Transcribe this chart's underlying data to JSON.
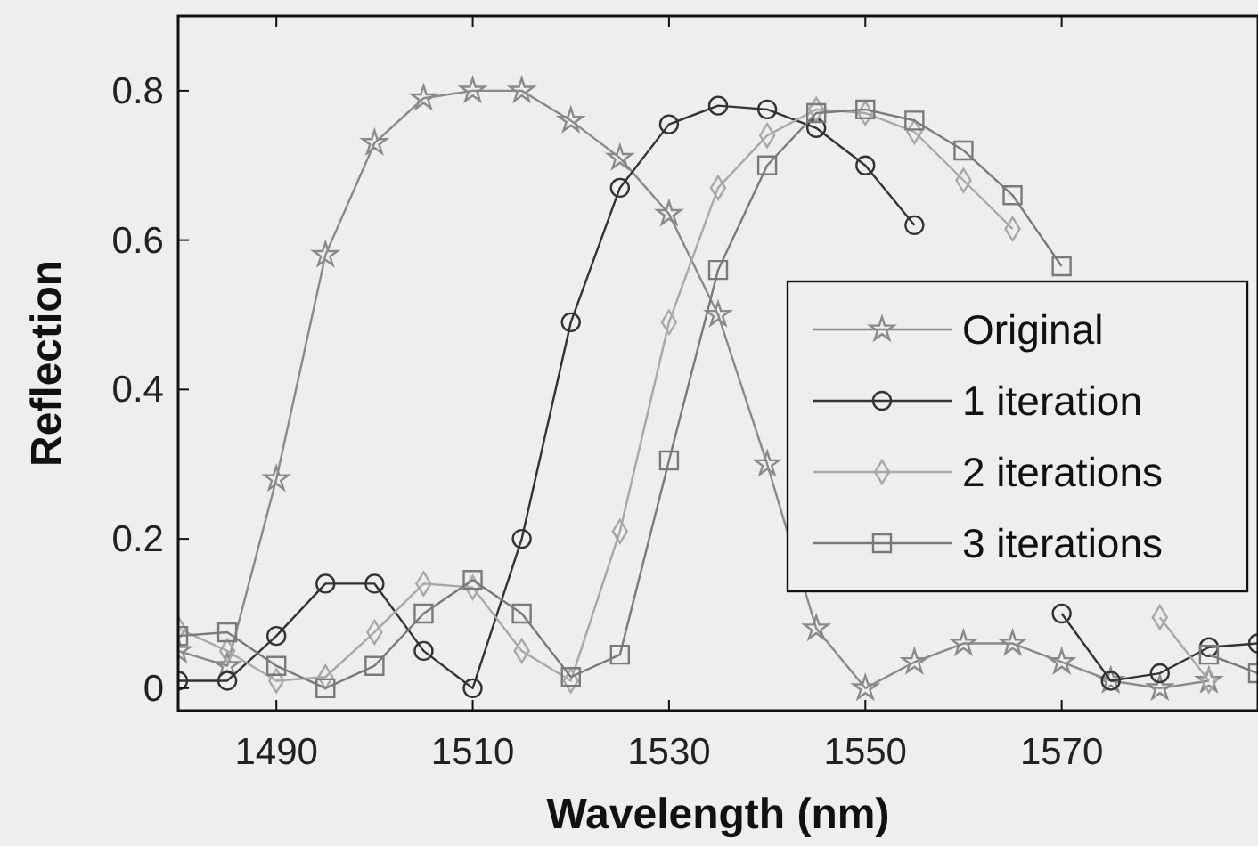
{
  "chart_data": {
    "type": "line",
    "xlabel": "Wavelength (nm)",
    "ylabel": "Reflection",
    "x": [
      1480,
      1485,
      1490,
      1495,
      1500,
      1505,
      1510,
      1515,
      1520,
      1525,
      1530,
      1535,
      1540,
      1545,
      1550,
      1555,
      1560,
      1565,
      1570,
      1575,
      1580,
      1585,
      1590
    ],
    "series": [
      {
        "name": "Original",
        "color": "#8a8a8a",
        "marker": "star",
        "values": [
          0.05,
          0.03,
          0.28,
          0.58,
          0.73,
          0.79,
          0.8,
          0.8,
          0.76,
          0.71,
          0.635,
          0.5,
          0.3,
          0.08,
          0.0,
          0.035,
          0.06,
          0.06,
          0.035,
          0.01,
          0.0,
          0.01,
          null
        ]
      },
      {
        "name": "1 iteration",
        "color": "#333333",
        "marker": "circle",
        "values": [
          0.01,
          0.01,
          0.07,
          0.14,
          0.14,
          0.05,
          0.0,
          0.2,
          0.49,
          0.67,
          0.755,
          0.78,
          0.775,
          0.75,
          0.7,
          0.62,
          null,
          null,
          0.1,
          0.01,
          0.02,
          0.055,
          0.06
        ]
      },
      {
        "name": "2 iterations",
        "color": "#a8a8a8",
        "marker": "diamond",
        "values": [
          0.08,
          0.05,
          0.01,
          0.015,
          0.075,
          0.14,
          0.135,
          0.05,
          0.01,
          0.21,
          0.49,
          0.67,
          0.74,
          0.775,
          0.77,
          0.745,
          0.68,
          0.615,
          null,
          null,
          0.095,
          0.01,
          null
        ]
      },
      {
        "name": "3 iterations",
        "color": "#7a7a7a",
        "marker": "square",
        "values": [
          0.07,
          0.075,
          0.03,
          0.0,
          0.03,
          0.1,
          0.145,
          0.1,
          0.015,
          0.045,
          0.305,
          0.56,
          0.7,
          0.77,
          0.775,
          0.76,
          0.72,
          0.66,
          0.565,
          null,
          null,
          0.045,
          0.02
        ]
      }
    ],
    "xlim": [
      1480,
      1590
    ],
    "ylim": [
      -0.03,
      0.9
    ],
    "xticks": [
      1490,
      1510,
      1530,
      1550,
      1570
    ],
    "yticks": [
      0,
      0.2,
      0.4,
      0.6,
      0.8
    ],
    "legend": "right",
    "grid": false,
    "line_style": "solid"
  }
}
